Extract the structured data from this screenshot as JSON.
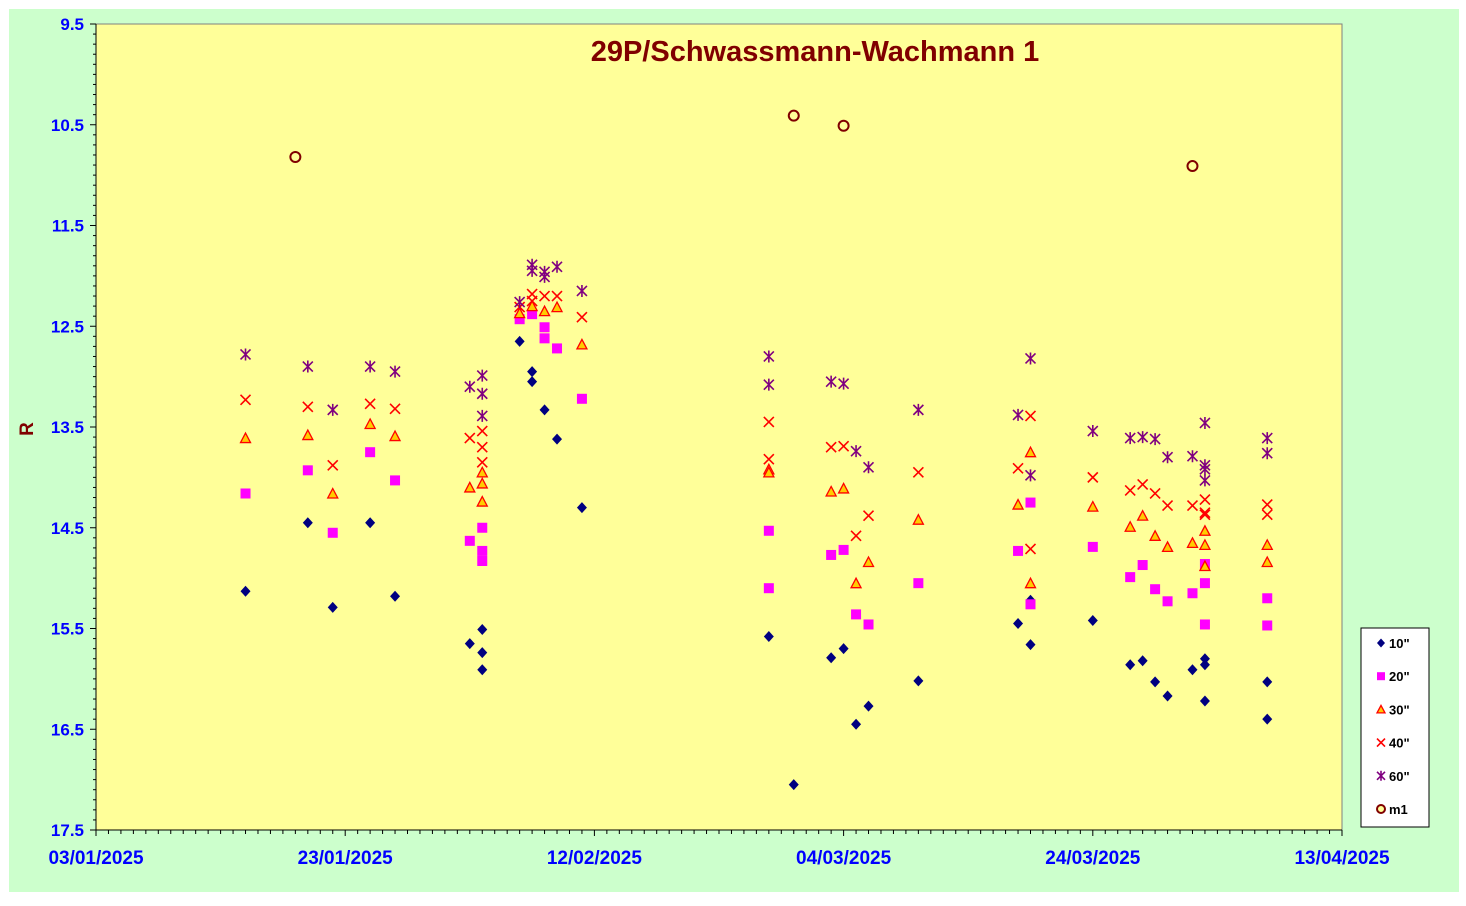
{
  "chart_data": {
    "type": "scatter",
    "title": "29P/Schwassmann-Wachmann  1",
    "xlabel": "",
    "ylabel": "R",
    "x_axis": {
      "type": "date",
      "min": "03/01/2025",
      "max": "13/04/2025",
      "tick_labels": [
        "03/01/2025",
        "23/01/2025",
        "12/02/2025",
        "04/03/2025",
        "24/03/2025",
        "13/04/2025"
      ]
    },
    "y_axis": {
      "min": 9.5,
      "max": 17.5,
      "inverted": true,
      "tick_labels": [
        "9.5",
        "10.5",
        "11.5",
        "12.5",
        "13.5",
        "14.5",
        "15.5",
        "16.5",
        "17.5"
      ]
    },
    "grid": false,
    "legend_position": "right",
    "colors": {
      "frame_bg": "#ccffcc",
      "plot_bg": "#ffff99",
      "title": "#800000",
      "ticks": "#0000ff"
    },
    "series": [
      {
        "name": "10\"",
        "marker": "diamond",
        "color": "#000080",
        "points": [
          [
            "15/01/2025",
            15.13
          ],
          [
            "20/01/2025",
            14.45
          ],
          [
            "22/01/2025",
            15.29
          ],
          [
            "25/01/2025",
            14.45
          ],
          [
            "27/01/2025",
            15.18
          ],
          [
            "02/02/2025",
            15.65
          ],
          [
            "03/02/2025",
            15.74
          ],
          [
            "03/02/2025",
            15.51
          ],
          [
            "03/02/2025",
            15.91
          ],
          [
            "06/02/2025",
            12.65
          ],
          [
            "07/02/2025",
            12.95
          ],
          [
            "07/02/2025",
            13.05
          ],
          [
            "08/02/2025",
            13.33
          ],
          [
            "09/02/2025",
            13.62
          ],
          [
            "11/02/2025",
            14.3
          ],
          [
            "26/02/2025",
            15.58
          ],
          [
            "03/03/2025",
            15.79
          ],
          [
            "04/03/2025",
            15.7
          ],
          [
            "05/03/2025",
            16.45
          ],
          [
            "06/03/2025",
            16.27
          ],
          [
            "10/03/2025",
            16.02
          ],
          [
            "18/03/2025",
            15.45
          ],
          [
            "19/03/2025",
            15.22
          ],
          [
            "19/03/2025",
            15.66
          ],
          [
            "24/03/2025",
            15.42
          ],
          [
            "27/03/2025",
            15.86
          ],
          [
            "28/03/2025",
            15.82
          ],
          [
            "29/03/2025",
            16.03
          ],
          [
            "30/03/2025",
            16.17
          ],
          [
            "01/04/2025",
            15.91
          ],
          [
            "02/04/2025",
            15.8
          ],
          [
            "02/04/2025",
            15.86
          ],
          [
            "02/04/2025",
            16.22
          ],
          [
            "07/04/2025",
            16.03
          ],
          [
            "07/04/2025",
            16.4
          ],
          [
            "28/02/2025",
            17.05
          ]
        ]
      },
      {
        "name": "20\"",
        "marker": "square",
        "color": "#ff00ff",
        "points": [
          [
            "15/01/2025",
            14.16
          ],
          [
            "20/01/2025",
            13.93
          ],
          [
            "22/01/2025",
            14.55
          ],
          [
            "25/01/2025",
            13.75
          ],
          [
            "27/01/2025",
            14.03
          ],
          [
            "02/02/2025",
            14.63
          ],
          [
            "03/02/2025",
            14.5
          ],
          [
            "03/02/2025",
            14.73
          ],
          [
            "03/02/2025",
            14.83
          ],
          [
            "06/02/2025",
            12.43
          ],
          [
            "07/02/2025",
            12.38
          ],
          [
            "08/02/2025",
            12.51
          ],
          [
            "08/02/2025",
            12.62
          ],
          [
            "09/02/2025",
            12.72
          ],
          [
            "11/02/2025",
            13.22
          ],
          [
            "26/02/2025",
            14.53
          ],
          [
            "26/02/2025",
            15.1
          ],
          [
            "03/03/2025",
            14.77
          ],
          [
            "04/03/2025",
            14.72
          ],
          [
            "05/03/2025",
            15.36
          ],
          [
            "06/03/2025",
            15.46
          ],
          [
            "10/03/2025",
            15.05
          ],
          [
            "18/03/2025",
            14.73
          ],
          [
            "19/03/2025",
            14.25
          ],
          [
            "19/03/2025",
            15.26
          ],
          [
            "24/03/2025",
            14.69
          ],
          [
            "27/03/2025",
            14.99
          ],
          [
            "28/03/2025",
            14.87
          ],
          [
            "29/03/2025",
            15.11
          ],
          [
            "30/03/2025",
            15.23
          ],
          [
            "01/04/2025",
            15.15
          ],
          [
            "02/04/2025",
            14.86
          ],
          [
            "02/04/2025",
            15.05
          ],
          [
            "02/04/2025",
            15.46
          ],
          [
            "07/04/2025",
            15.2
          ],
          [
            "07/04/2025",
            15.47
          ]
        ]
      },
      {
        "name": "30\"",
        "marker": "triangle",
        "color": "#ffcc00",
        "stroke": "#ff0000",
        "points": [
          [
            "15/01/2025",
            13.61
          ],
          [
            "20/01/2025",
            13.58
          ],
          [
            "22/01/2025",
            14.16
          ],
          [
            "25/01/2025",
            13.47
          ],
          [
            "27/01/2025",
            13.59
          ],
          [
            "02/02/2025",
            14.1
          ],
          [
            "03/02/2025",
            13.95
          ],
          [
            "03/02/2025",
            14.06
          ],
          [
            "03/02/2025",
            14.24
          ],
          [
            "06/02/2025",
            12.37
          ],
          [
            "07/02/2025",
            12.3
          ],
          [
            "08/02/2025",
            12.35
          ],
          [
            "09/02/2025",
            12.31
          ],
          [
            "11/02/2025",
            12.68
          ],
          [
            "26/02/2025",
            13.92
          ],
          [
            "26/02/2025",
            13.95
          ],
          [
            "03/03/2025",
            14.14
          ],
          [
            "04/03/2025",
            14.11
          ],
          [
            "05/03/2025",
            15.05
          ],
          [
            "06/03/2025",
            14.84
          ],
          [
            "10/03/2025",
            14.42
          ],
          [
            "18/03/2025",
            14.27
          ],
          [
            "19/03/2025",
            13.75
          ],
          [
            "19/03/2025",
            15.05
          ],
          [
            "24/03/2025",
            14.29
          ],
          [
            "27/03/2025",
            14.49
          ],
          [
            "28/03/2025",
            14.38
          ],
          [
            "29/03/2025",
            14.58
          ],
          [
            "30/03/2025",
            14.69
          ],
          [
            "01/04/2025",
            14.65
          ],
          [
            "02/04/2025",
            14.53
          ],
          [
            "02/04/2025",
            14.67
          ],
          [
            "02/04/2025",
            14.88
          ],
          [
            "07/04/2025",
            14.67
          ],
          [
            "07/04/2025",
            14.84
          ]
        ]
      },
      {
        "name": "40\"",
        "marker": "x",
        "color": "#ff0000",
        "points": [
          [
            "15/01/2025",
            13.23
          ],
          [
            "20/01/2025",
            13.3
          ],
          [
            "22/01/2025",
            13.88
          ],
          [
            "25/01/2025",
            13.27
          ],
          [
            "27/01/2025",
            13.32
          ],
          [
            "02/02/2025",
            13.61
          ],
          [
            "03/02/2025",
            13.54
          ],
          [
            "03/02/2025",
            13.7
          ],
          [
            "03/02/2025",
            13.85
          ],
          [
            "06/02/2025",
            12.31
          ],
          [
            "07/02/2025",
            12.18
          ],
          [
            "07/02/2025",
            12.25
          ],
          [
            "08/02/2025",
            12.2
          ],
          [
            "09/02/2025",
            12.2
          ],
          [
            "11/02/2025",
            12.41
          ],
          [
            "26/02/2025",
            13.45
          ],
          [
            "26/02/2025",
            13.82
          ],
          [
            "03/03/2025",
            13.7
          ],
          [
            "04/03/2025",
            13.69
          ],
          [
            "05/03/2025",
            14.58
          ],
          [
            "06/03/2025",
            14.38
          ],
          [
            "10/03/2025",
            13.95
          ],
          [
            "18/03/2025",
            13.91
          ],
          [
            "19/03/2025",
            13.39
          ],
          [
            "19/03/2025",
            14.71
          ],
          [
            "24/03/2025",
            14.0
          ],
          [
            "27/03/2025",
            14.13
          ],
          [
            "28/03/2025",
            14.07
          ],
          [
            "29/03/2025",
            14.16
          ],
          [
            "30/03/2025",
            14.28
          ],
          [
            "01/04/2025",
            14.28
          ],
          [
            "02/04/2025",
            14.22
          ],
          [
            "02/04/2025",
            14.35
          ],
          [
            "02/04/2025",
            14.37
          ],
          [
            "07/04/2025",
            14.27
          ],
          [
            "07/04/2025",
            14.37
          ]
        ]
      },
      {
        "name": "60\"",
        "marker": "star",
        "color": "#800080",
        "points": [
          [
            "15/01/2025",
            12.78
          ],
          [
            "20/01/2025",
            12.9
          ],
          [
            "22/01/2025",
            13.33
          ],
          [
            "25/01/2025",
            12.9
          ],
          [
            "27/01/2025",
            12.95
          ],
          [
            "02/02/2025",
            13.1
          ],
          [
            "03/02/2025",
            12.99
          ],
          [
            "03/02/2025",
            13.17
          ],
          [
            "03/02/2025",
            13.39
          ],
          [
            "06/02/2025",
            12.26
          ],
          [
            "07/02/2025",
            11.89
          ],
          [
            "07/02/2025",
            11.95
          ],
          [
            "08/02/2025",
            11.96
          ],
          [
            "08/02/2025",
            12.01
          ],
          [
            "09/02/2025",
            11.91
          ],
          [
            "11/02/2025",
            12.15
          ],
          [
            "26/02/2025",
            12.8
          ],
          [
            "26/02/2025",
            13.08
          ],
          [
            "03/03/2025",
            13.05
          ],
          [
            "04/03/2025",
            13.07
          ],
          [
            "05/03/2025",
            13.74
          ],
          [
            "06/03/2025",
            13.9
          ],
          [
            "10/03/2025",
            13.33
          ],
          [
            "18/03/2025",
            13.38
          ],
          [
            "19/03/2025",
            12.82
          ],
          [
            "19/03/2025",
            13.98
          ],
          [
            "24/03/2025",
            13.54
          ],
          [
            "27/03/2025",
            13.61
          ],
          [
            "28/03/2025",
            13.6
          ],
          [
            "29/03/2025",
            13.62
          ],
          [
            "30/03/2025",
            13.8
          ],
          [
            "01/04/2025",
            13.79
          ],
          [
            "02/04/2025",
            13.46
          ],
          [
            "02/04/2025",
            13.88
          ],
          [
            "02/04/2025",
            13.92
          ],
          [
            "02/04/2025",
            14.03
          ],
          [
            "07/04/2025",
            13.61
          ],
          [
            "07/04/2025",
            13.76
          ]
        ]
      },
      {
        "name": "m1",
        "marker": "circle",
        "color": "#800000",
        "points": [
          [
            "19/01/2025",
            10.82
          ],
          [
            "28/02/2025",
            10.41
          ],
          [
            "04/03/2025",
            10.51
          ],
          [
            "01/04/2025",
            10.91
          ]
        ]
      }
    ]
  }
}
